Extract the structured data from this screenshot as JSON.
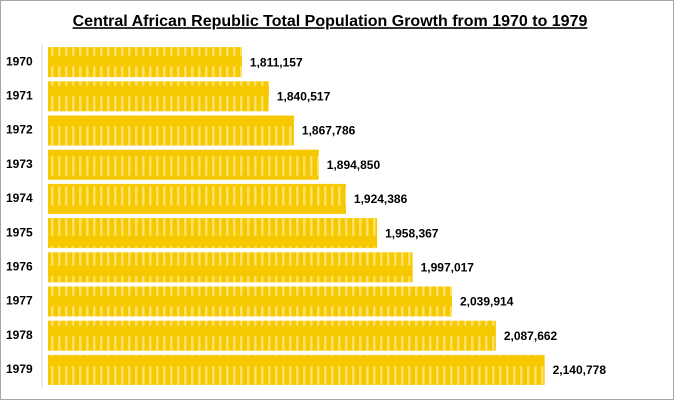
{
  "chart_data": {
    "type": "bar",
    "orientation": "horizontal",
    "title": "Central African Republic Total Population Growth from 1970 to 1979",
    "categories": [
      "1970",
      "1971",
      "1972",
      "1973",
      "1974",
      "1975",
      "1976",
      "1977",
      "1978",
      "1979"
    ],
    "values": [
      1811157,
      1840517,
      1867786,
      1894850,
      1924386,
      1958367,
      1997017,
      2039914,
      2087662,
      2140778
    ],
    "value_labels": [
      "1,811,157",
      "1,840,517",
      "1,867,786",
      "1,894,850",
      "1,924,386",
      "1,958,367",
      "1,997,017",
      "2,039,914",
      "2,087,662",
      "2,140,778"
    ],
    "color": "#f5c800",
    "xlim": [
      1600000,
      2200000
    ]
  }
}
